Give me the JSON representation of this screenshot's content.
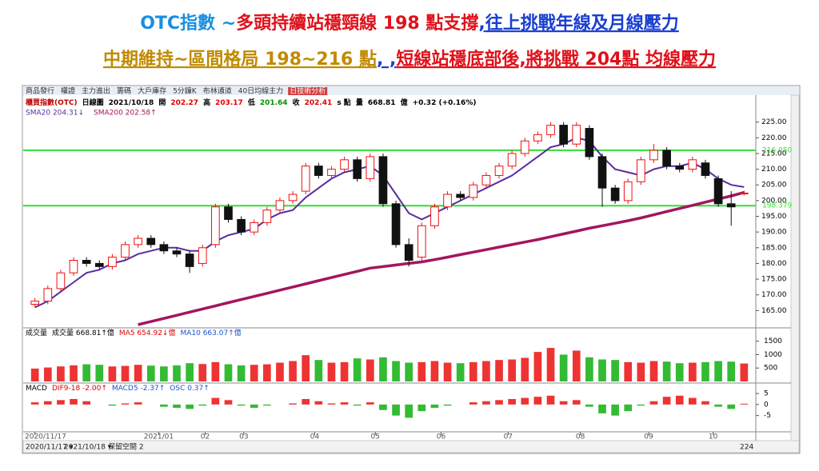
{
  "headline": {
    "line1": [
      {
        "text": "OTC指數 ~",
        "color": "#1a8fe0"
      },
      {
        "text": "多頭持續站穩頸線 198 點支撐",
        "color": "#e0101a"
      },
      {
        "text": ",",
        "color": "#1a3fd0"
      },
      {
        "text": "往上挑戰年線及月線壓力",
        "color": "#1a3fd0"
      }
    ],
    "line2": [
      {
        "text": "中期維持~區間格局 198~216 點",
        "color": "#c08a00"
      },
      {
        "text": ", ,",
        "color": "#1a3fd0"
      },
      {
        "text": "短線站穩底部後,將挑戰 204點 均線壓力",
        "color": "#e0101a"
      }
    ]
  },
  "window": {
    "tabs": [
      "商品發行",
      "權證",
      "主力進出",
      "籌碼",
      "大戶庫存",
      "5分鐘K",
      "布林通道",
      "40日均線主力",
      "日技術分析"
    ],
    "info": [
      {
        "text": "櫃買指數(OTC)",
        "color": "#c00000"
      },
      {
        "text": "日線圖",
        "color": "#000"
      },
      {
        "text": "2021/10/18",
        "color": "#000"
      },
      {
        "text": "開",
        "color": "#000"
      },
      {
        "text": "202.27",
        "color": "#e00000"
      },
      {
        "text": "高",
        "color": "#000"
      },
      {
        "text": "203.17",
        "color": "#e00000"
      },
      {
        "text": "低",
        "color": "#000"
      },
      {
        "text": "201.64",
        "color": "#009000"
      },
      {
        "text": "收",
        "color": "#000"
      },
      {
        "text": "202.41",
        "color": "#e00000"
      },
      {
        "text": "s 點",
        "color": "#000"
      },
      {
        "text": "量",
        "color": "#000"
      },
      {
        "text": "668.81",
        "color": "#000"
      },
      {
        "text": "億",
        "color": "#000"
      },
      {
        "text": "+0.32 (+0.16%)",
        "color": "#000"
      }
    ],
    "start_date": "2020/11/17 ▾",
    "end_date": "2021/10/18 ▾",
    "reserve": "保留空間 2",
    "count": "224"
  },
  "chart_data": {
    "type": "candlestick",
    "xlim": [
      -0.6,
      55.6
    ],
    "xticks": [
      {
        "value": 0,
        "label": "2020/11/17"
      },
      {
        "value": 9.6,
        "label": "2021/01"
      },
      {
        "value": 13.2,
        "label": "02"
      },
      {
        "value": 16.2,
        "label": "03"
      },
      {
        "value": 21.7,
        "label": "04"
      },
      {
        "value": 26.4,
        "label": "05"
      },
      {
        "value": 31.5,
        "label": "06"
      },
      {
        "value": 36.7,
        "label": "07"
      },
      {
        "value": 42.3,
        "label": "08"
      },
      {
        "value": 47.6,
        "label": "09"
      },
      {
        "value": 52.6,
        "label": "10"
      }
    ],
    "ylim": [
      160,
      229.5
    ],
    "yticks": [
      {
        "value": 165,
        "label": "165.00"
      },
      {
        "value": 170,
        "label": "170.00"
      },
      {
        "value": 175,
        "label": "175.00"
      },
      {
        "value": 180,
        "label": "180.00"
      },
      {
        "value": 185,
        "label": "185.00"
      },
      {
        "value": 190,
        "label": "190.00"
      },
      {
        "value": 195,
        "label": "195.00"
      },
      {
        "value": 200,
        "label": "200.00"
      },
      {
        "value": 205,
        "label": "205.00"
      },
      {
        "value": 210,
        "label": "210.00"
      },
      {
        "value": 215,
        "label": "215.00"
      },
      {
        "value": 220,
        "label": "220.00"
      },
      {
        "value": 225,
        "label": "225.00"
      }
    ],
    "up_color": "#ee1111",
    "down_color": "#111111",
    "candles": {
      "open": [
        167,
        168,
        172,
        177,
        181,
        180,
        179,
        182,
        186,
        188,
        186,
        184,
        183,
        180,
        186,
        198,
        194,
        190,
        193,
        197,
        200,
        203,
        211,
        208,
        210,
        213,
        207,
        214,
        199,
        186,
        182,
        192,
        198,
        202,
        201,
        205,
        208,
        211,
        215,
        219,
        221,
        224,
        218,
        223,
        214,
        204,
        200,
        206,
        213,
        216,
        211,
        210,
        212,
        207,
        199,
        202.27
      ],
      "high": [
        169,
        173,
        178,
        182,
        182,
        181,
        183,
        187,
        189,
        189,
        187,
        185,
        184,
        186,
        199,
        199,
        195,
        194,
        198,
        201,
        203,
        212,
        212,
        211,
        214,
        214,
        215,
        215,
        200,
        188,
        193,
        199,
        203,
        203,
        206,
        209,
        212,
        216,
        220,
        222,
        225,
        225,
        225,
        224,
        215,
        205,
        207,
        214,
        218,
        217,
        212,
        214,
        213,
        208,
        203,
        203.17
      ],
      "low": [
        166,
        167,
        171,
        176,
        179,
        178,
        178,
        181,
        185,
        185,
        183,
        182,
        177,
        179,
        185,
        193,
        189,
        189,
        192,
        196,
        199,
        202,
        207,
        207,
        209,
        206,
        206,
        198,
        185,
        179,
        181,
        191,
        197,
        200,
        200,
        204,
        207,
        210,
        214,
        218,
        220,
        217,
        217,
        213,
        198,
        199,
        199,
        205,
        212,
        210,
        209,
        209,
        207,
        198,
        192,
        201.64
      ],
      "close": [
        168,
        172,
        177,
        181,
        180,
        179,
        182,
        186,
        188,
        186,
        184,
        183,
        179,
        185,
        198,
        194,
        190,
        193,
        197,
        200,
        202,
        211,
        208,
        210,
        213,
        207,
        214,
        199,
        186,
        181,
        192,
        198,
        202,
        201,
        205,
        208,
        211,
        215,
        219,
        221,
        224,
        218,
        224,
        214,
        204,
        200,
        206,
        213,
        216,
        211,
        210,
        213,
        208,
        199,
        198,
        202.41
      ]
    },
    "series": [
      {
        "name": "SMA20 204.31↓",
        "color": "#5a2ca0",
        "values": [
          166,
          168,
          171,
          174,
          177,
          178,
          180,
          181,
          183,
          184,
          185,
          185,
          184,
          184,
          187,
          189,
          190,
          191,
          194,
          196,
          197,
          201,
          204,
          207,
          209,
          210,
          211,
          208,
          202,
          196,
          194,
          196,
          198,
          200,
          202,
          204,
          206,
          208,
          211,
          214,
          217,
          218,
          220,
          219,
          214,
          210,
          209,
          208,
          210,
          211,
          211,
          212,
          210,
          207,
          205,
          204.31
        ]
      },
      {
        "name": "SMA200 202.58↑",
        "color": "#a3165e",
        "values": [
          null,
          null,
          null,
          null,
          null,
          null,
          null,
          null,
          160.5,
          161.5,
          162.5,
          163.5,
          164.5,
          165.5,
          166.5,
          167.5,
          168.5,
          169.5,
          170.5,
          171.5,
          172.5,
          173.5,
          174.5,
          175.5,
          176.5,
          177.5,
          178.5,
          179,
          179.5,
          180,
          180.5,
          181.2,
          182,
          182.8,
          183.6,
          184.4,
          185.2,
          186,
          186.8,
          187.6,
          188.5,
          189.4,
          190.3,
          191.2,
          192,
          192.8,
          193.6,
          194.5,
          195.5,
          196.5,
          197.5,
          198.5,
          199.5,
          200.5,
          201.5,
          202.58
        ]
      }
    ],
    "hlines": [
      {
        "value": 216.05,
        "label": "216.050",
        "color": "#33dd33"
      },
      {
        "value": 198.379,
        "label": "198.379",
        "color": "#33dd33"
      }
    ],
    "volume": {
      "legend": [
        {
          "text": "成交量",
          "color": "#000"
        },
        {
          "text": "成交量 668.81↑億",
          "color": "#000"
        },
        {
          "text": "MA5 654.92↓億",
          "color": "#e00000"
        },
        {
          "text": "MA10 663.07↑億",
          "color": "#1a50d0"
        }
      ],
      "ylim": [
        0,
        1700
      ],
      "yticks": [
        500,
        1000,
        1500
      ],
      "values": [
        480,
        520,
        560,
        600,
        640,
        620,
        560,
        580,
        620,
        590,
        560,
        600,
        680,
        650,
        720,
        640,
        600,
        620,
        640,
        700,
        760,
        980,
        800,
        700,
        720,
        860,
        820,
        900,
        760,
        700,
        720,
        760,
        700,
        680,
        720,
        760,
        800,
        820,
        880,
        1100,
        1250,
        1000,
        1150,
        900,
        820,
        800,
        720,
        700,
        760,
        740,
        680,
        700,
        720,
        760,
        740,
        668.81
      ]
    },
    "macd": {
      "legend": [
        {
          "text": "MACD",
          "color": "#000"
        },
        {
          "text": "DIF9-18 -2.00↑",
          "color": "#e00000"
        },
        {
          "text": "MACD5 -2.37↑",
          "color": "#1a50d0"
        },
        {
          "text": "OSC 0.37↑",
          "color": "#1a50d0"
        }
      ],
      "ylim": [
        -12,
        9
      ],
      "yticks": [
        -5,
        0,
        5
      ],
      "osc": [
        1,
        1.5,
        2,
        2.5,
        1.5,
        0,
        -0.5,
        0.5,
        1,
        0,
        -1,
        -1.5,
        -2,
        -0.5,
        3,
        2,
        -0.5,
        -1.5,
        -0.5,
        0,
        0.5,
        2.5,
        1.5,
        0.5,
        1,
        -0.5,
        1,
        -2.5,
        -5,
        -6,
        -3,
        -1.5,
        -0.5,
        0,
        1,
        1.5,
        2,
        2.5,
        3,
        3.5,
        4,
        1.5,
        2,
        -1,
        -4,
        -5,
        -3,
        -0.5,
        1.5,
        3.5,
        4,
        3,
        1.5,
        -1,
        -2,
        0.37
      ]
    }
  }
}
